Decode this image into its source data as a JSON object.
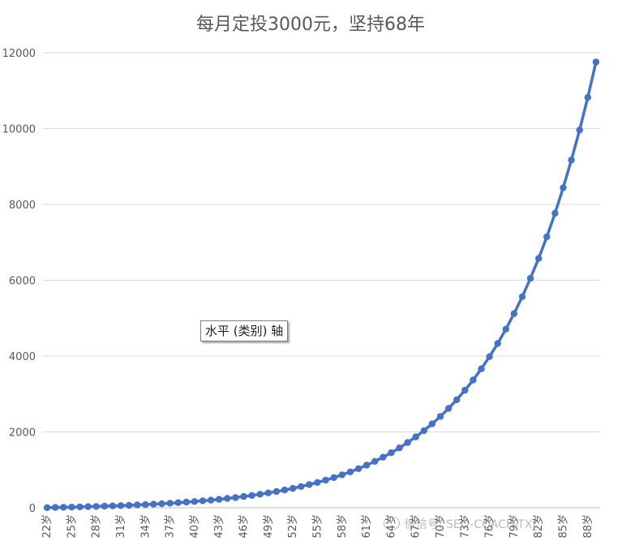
{
  "chart_data": {
    "type": "line",
    "title": "每月定投3000元，坚持68年",
    "x": [
      "22岁",
      "23岁",
      "24岁",
      "25岁",
      "26岁",
      "27岁",
      "28岁",
      "29岁",
      "30岁",
      "31岁",
      "32岁",
      "33岁",
      "34岁",
      "35岁",
      "36岁",
      "37岁",
      "38岁",
      "39岁",
      "40岁",
      "41岁",
      "42岁",
      "43岁",
      "44岁",
      "45岁",
      "46岁",
      "47岁",
      "48岁",
      "49岁",
      "50岁",
      "51岁",
      "52岁",
      "53岁",
      "54岁",
      "55岁",
      "56岁",
      "57岁",
      "58岁",
      "59岁",
      "60岁",
      "61岁",
      "62岁",
      "63岁",
      "64岁",
      "65岁",
      "66岁",
      "67岁",
      "68岁",
      "69岁",
      "70岁",
      "71岁",
      "72岁",
      "73岁",
      "74岁",
      "75岁",
      "76岁",
      "77岁",
      "78岁",
      "79岁",
      "80岁",
      "81岁",
      "82岁",
      "83岁",
      "84岁",
      "85岁",
      "86岁",
      "87岁",
      "88岁",
      "89岁"
    ],
    "x_tick_labels": [
      "22岁",
      "25岁",
      "28岁",
      "31岁",
      "34岁",
      "37岁",
      "40岁",
      "43岁",
      "46岁",
      "49岁",
      "52岁",
      "55岁",
      "58岁",
      "61岁",
      "64岁",
      "67岁",
      "70岁",
      "73岁",
      "76岁",
      "79岁",
      "82岁",
      "85岁",
      "88岁"
    ],
    "series": [
      {
        "values": [
          4,
          8,
          13,
          18,
          23,
          29,
          35,
          42,
          49,
          57,
          65,
          75,
          84,
          95,
          107,
          120,
          134,
          149,
          165,
          183,
          202,
          223,
          245,
          270,
          297,
          326,
          357,
          391,
          428,
          468,
          512,
          560,
          612,
          668,
          729,
          795,
          868,
          946,
          1031,
          1123,
          1223,
          1332,
          1451,
          1579,
          1719,
          1870,
          2035,
          2214,
          2408,
          2620,
          2849,
          3099,
          3370,
          3664,
          3984,
          4332,
          4710,
          5121,
          5566,
          6051,
          6576,
          7147,
          7767,
          8440,
          9170,
          9962,
          10822,
          11755
        ],
        "color": "#4472c4"
      }
    ],
    "ylim": [
      0,
      12000
    ],
    "yticks": [
      "0",
      "2000",
      "4000",
      "6000",
      "8000",
      "10000",
      "12000"
    ],
    "grid": true,
    "legend": "none"
  },
  "tooltip_text": "水平 (类别) 轴",
  "watermark_text": "微信号: SEO-COACH-TXJ"
}
